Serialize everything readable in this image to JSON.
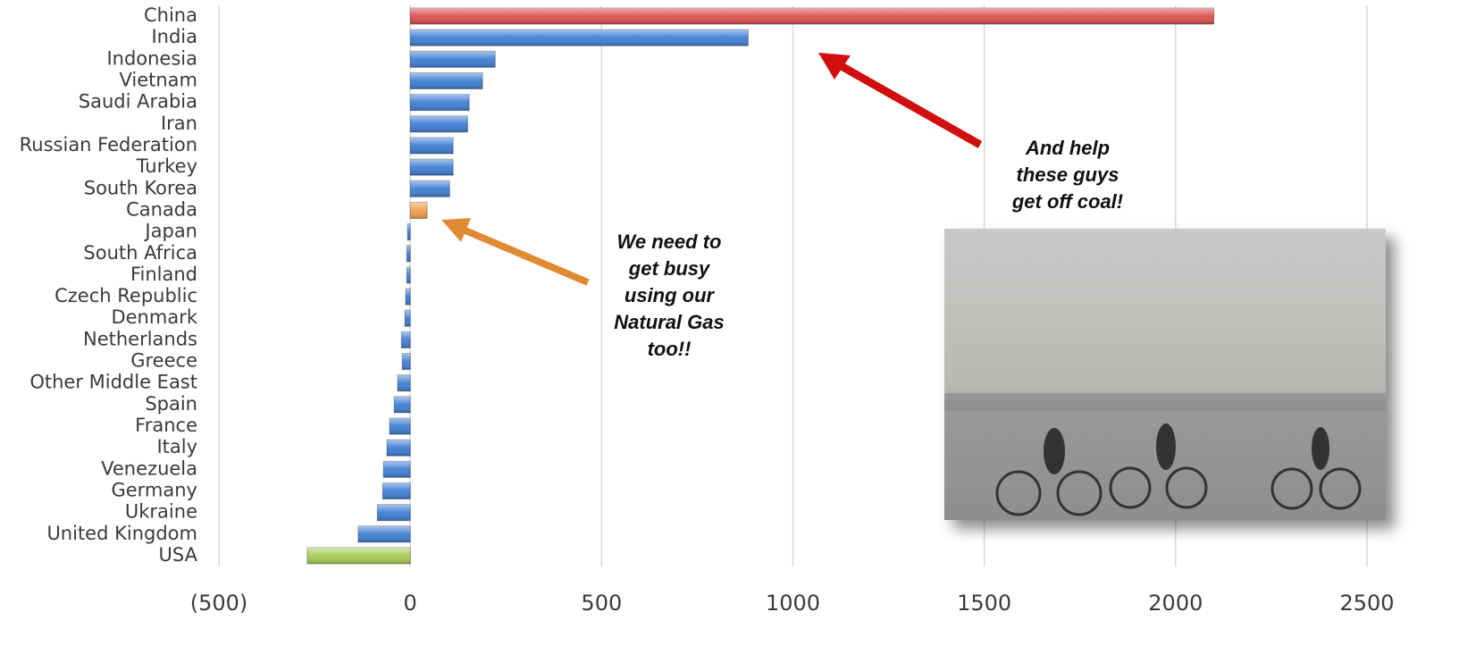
{
  "chart_data": {
    "type": "bar",
    "orientation": "horizontal",
    "categories": [
      "China",
      "India",
      "Indonesia",
      "Vietnam",
      "Saudi Arabia",
      "Iran",
      "Russian Federation",
      "Turkey",
      "South Korea",
      "Canada",
      "Japan",
      "South Africa",
      "Finland",
      "Czech Republic",
      "Denmark",
      "Netherlands",
      "Greece",
      "Other Middle East",
      "Spain",
      "France",
      "Italy",
      "Venezuela",
      "Germany",
      "Ukraine",
      "United Kingdom",
      "USA"
    ],
    "values": [
      2100,
      883,
      222,
      189,
      154,
      150,
      112,
      112,
      103,
      44,
      -7,
      -9,
      -9,
      -12,
      -14,
      -23,
      -21,
      -33,
      -42,
      -54,
      -61,
      -70,
      -72,
      -86,
      -136,
      -269
    ],
    "colors": [
      "#d9514e",
      "#3f7fd4",
      "#3f7fd4",
      "#3f7fd4",
      "#3f7fd4",
      "#3f7fd4",
      "#3f7fd4",
      "#3f7fd4",
      "#3f7fd4",
      "#f0a04b",
      "#3f7fd4",
      "#3f7fd4",
      "#3f7fd4",
      "#3f7fd4",
      "#3f7fd4",
      "#3f7fd4",
      "#3f7fd4",
      "#3f7fd4",
      "#3f7fd4",
      "#3f7fd4",
      "#3f7fd4",
      "#3f7fd4",
      "#3f7fd4",
      "#3f7fd4",
      "#3f7fd4",
      "#a9cc55"
    ],
    "xlim": [
      -500,
      2500
    ],
    "xticks": [
      {
        "value": -500,
        "label": "(500)"
      },
      0,
      500,
      1000,
      1500,
      2000,
      2500
    ],
    "grid": true,
    "annotations": [
      {
        "lines": [
          "We need to",
          "get busy",
          "using our",
          "Natural Gas",
          "too!!"
        ]
      },
      {
        "lines": [
          "And help",
          "these guys",
          "get off coal!"
        ]
      }
    ]
  }
}
